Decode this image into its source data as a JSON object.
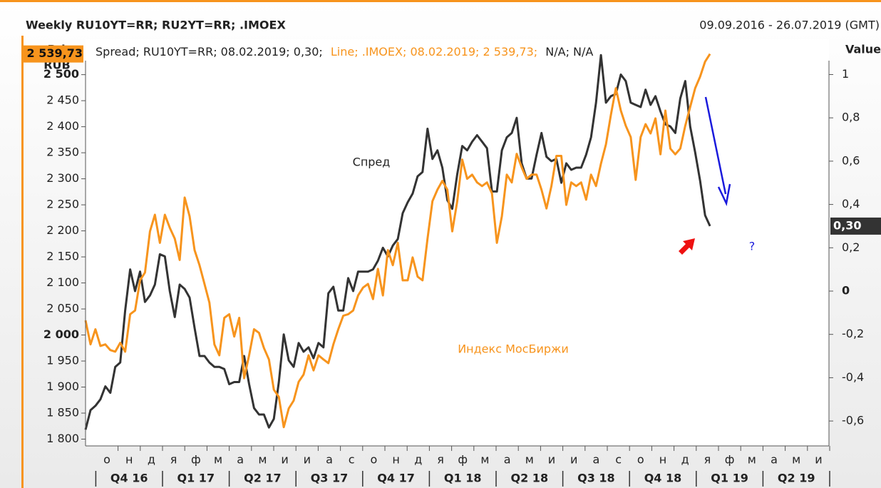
{
  "chart_data": {
    "type": "line",
    "title": "Weekly RU10YT=RR; RU2YT=RR; .IMOEX",
    "date_range": "09.09.2016 - 26.07.2019 (GMT)",
    "y_label": "Price",
    "y_unit": "RUB",
    "y2_label": "Value",
    "legend_text": [
      "Spread; RU10YT=RR; 08.02.2019; 0,30;",
      "Line; .IMOEX; 08.02.2019; 2 539,73;",
      "N/A; N/A"
    ],
    "annotations": [
      "Спред",
      "Индекс МосБиржи",
      "?"
    ],
    "months": [
      "о",
      "н",
      "д",
      "я",
      "ф",
      "м",
      "а",
      "м",
      "и",
      "и",
      "а",
      "с",
      "о",
      "н",
      "д",
      "я",
      "ф",
      "м",
      "а",
      "м",
      "и",
      "и",
      "а",
      "с",
      "о",
      "н",
      "д",
      "я",
      "ф",
      "м",
      "а",
      "м",
      "и"
    ],
    "quarters": [
      "Q4 16",
      "Q1 17",
      "Q2 17",
      "Q3 17",
      "Q4 17",
      "Q1 18",
      "Q2 18",
      "Q3 18",
      "Q4 18",
      "Q1 19",
      "Q2 19"
    ],
    "ylim": [
      1787,
      2568
    ],
    "yticks": [
      {
        "value": 1800,
        "label": "1 800"
      },
      {
        "value": 1850,
        "label": "1 850"
      },
      {
        "value": 1900,
        "label": "1 900"
      },
      {
        "value": 1950,
        "label": "1 950"
      },
      {
        "value": 2000,
        "label": "2 000"
      },
      {
        "value": 2050,
        "label": "2 050"
      },
      {
        "value": 2100,
        "label": "2 100"
      },
      {
        "value": 2150,
        "label": "2 150"
      },
      {
        "value": 2200,
        "label": "2 200"
      },
      {
        "value": 2250,
        "label": "2 250"
      },
      {
        "value": 2300,
        "label": "2 300"
      },
      {
        "value": 2350,
        "label": "2 350"
      },
      {
        "value": 2400,
        "label": "2 400"
      },
      {
        "value": 2450,
        "label": "2 450"
      },
      {
        "value": 2500,
        "label": "2 500"
      }
    ],
    "y2lim": [
      -0.715,
      1.163
    ],
    "y2ticks": [
      {
        "value": -0.6,
        "label": "-0,6"
      },
      {
        "value": -0.4,
        "label": "-0,4"
      },
      {
        "value": -0.2,
        "label": "-0,2"
      },
      0,
      {
        "value": 0.2,
        "label": "0,2"
      },
      {
        "value": 0.4,
        "label": "0,4"
      },
      {
        "value": 0.6,
        "label": "0,6"
      },
      {
        "value": 0.8,
        "label": "0,8"
      },
      1
    ],
    "series": [
      {
        "name": "Spread",
        "color": "#333333",
        "axis": "y2",
        "last_value_label": "0,30",
        "values": [
          -0.64,
          -0.55,
          -0.53,
          -0.5,
          -0.44,
          -0.47,
          -0.35,
          -0.33,
          -0.09,
          0.1,
          0,
          0.09,
          -0.05,
          -0.02,
          0.03,
          0.17,
          0.16,
          0,
          -0.12,
          0.03,
          0.01,
          -0.03,
          -0.17,
          -0.3,
          -0.3,
          -0.33,
          -0.35,
          -0.35,
          -0.36,
          -0.43,
          -0.42,
          -0.42,
          -0.3,
          -0.43,
          -0.54,
          -0.57,
          -0.57,
          -0.63,
          -0.59,
          -0.42,
          -0.2,
          -0.32,
          -0.35,
          -0.24,
          -0.28,
          -0.26,
          -0.31,
          -0.24,
          -0.26,
          -0.01,
          0.02,
          -0.09,
          -0.09,
          0.06,
          0,
          0.09,
          0.09,
          0.09,
          0.1,
          0.14,
          0.2,
          0.16,
          0.21,
          0.24,
          0.36,
          0.41,
          0.45,
          0.53,
          0.55,
          0.75,
          0.61,
          0.65,
          0.57,
          0.42,
          0.38,
          0.54,
          0.67,
          0.65,
          0.69,
          0.72,
          0.69,
          0.66,
          0.46,
          0.46,
          0.65,
          0.71,
          0.73,
          0.8,
          0.59,
          0.52,
          0.52,
          0.63,
          0.73,
          0.62,
          0.6,
          0.61,
          0.5,
          0.59,
          0.56,
          0.57,
          0.57,
          0.63,
          0.71,
          0.87,
          1.09,
          0.87,
          0.9,
          0.91,
          1.0,
          0.97,
          0.87,
          0.86,
          0.85,
          0.93,
          0.86,
          0.9,
          0.83,
          0.77,
          0.76,
          0.73,
          0.89,
          0.97,
          0.76,
          0.64,
          0.51,
          0.35,
          0.3
        ]
      },
      {
        "name": ".IMOEX",
        "color": "#f7941d",
        "axis": "y",
        "last_value_label": "2 539,73",
        "values": [
          2028,
          1982,
          2011,
          1979,
          1982,
          1971,
          1968,
          1985,
          1968,
          2040,
          2047,
          2105,
          2120,
          2199,
          2231,
          2177,
          2231,
          2206,
          2185,
          2144,
          2264,
          2228,
          2163,
          2134,
          2098,
          2062,
          1982,
          1961,
          2033,
          2040,
          1997,
          2033,
          1917,
          1961,
          2011,
          2004,
          1975,
          1953,
          1895,
          1881,
          1823,
          1859,
          1874,
          1910,
          1924,
          1961,
          1932,
          1961,
          1953,
          1946,
          1982,
          2011,
          2037,
          2040,
          2047,
          2076,
          2091,
          2098,
          2069,
          2127,
          2076,
          2163,
          2134,
          2177,
          2105,
          2105,
          2149,
          2112,
          2105,
          2185,
          2257,
          2279,
          2296,
          2279,
          2199,
          2257,
          2337,
          2300,
          2308,
          2293,
          2286,
          2293,
          2272,
          2177,
          2228,
          2308,
          2293,
          2348,
          2322,
          2300,
          2308,
          2308,
          2279,
          2243,
          2286,
          2344,
          2344,
          2250,
          2293,
          2286,
          2293,
          2260,
          2308,
          2286,
          2329,
          2366,
          2423,
          2474,
          2431,
          2402,
          2380,
          2298,
          2380,
          2405,
          2387,
          2416,
          2347,
          2431,
          2358,
          2347,
          2358,
          2402,
          2438,
          2474,
          2496,
          2525,
          2539.73
        ]
      }
    ]
  }
}
